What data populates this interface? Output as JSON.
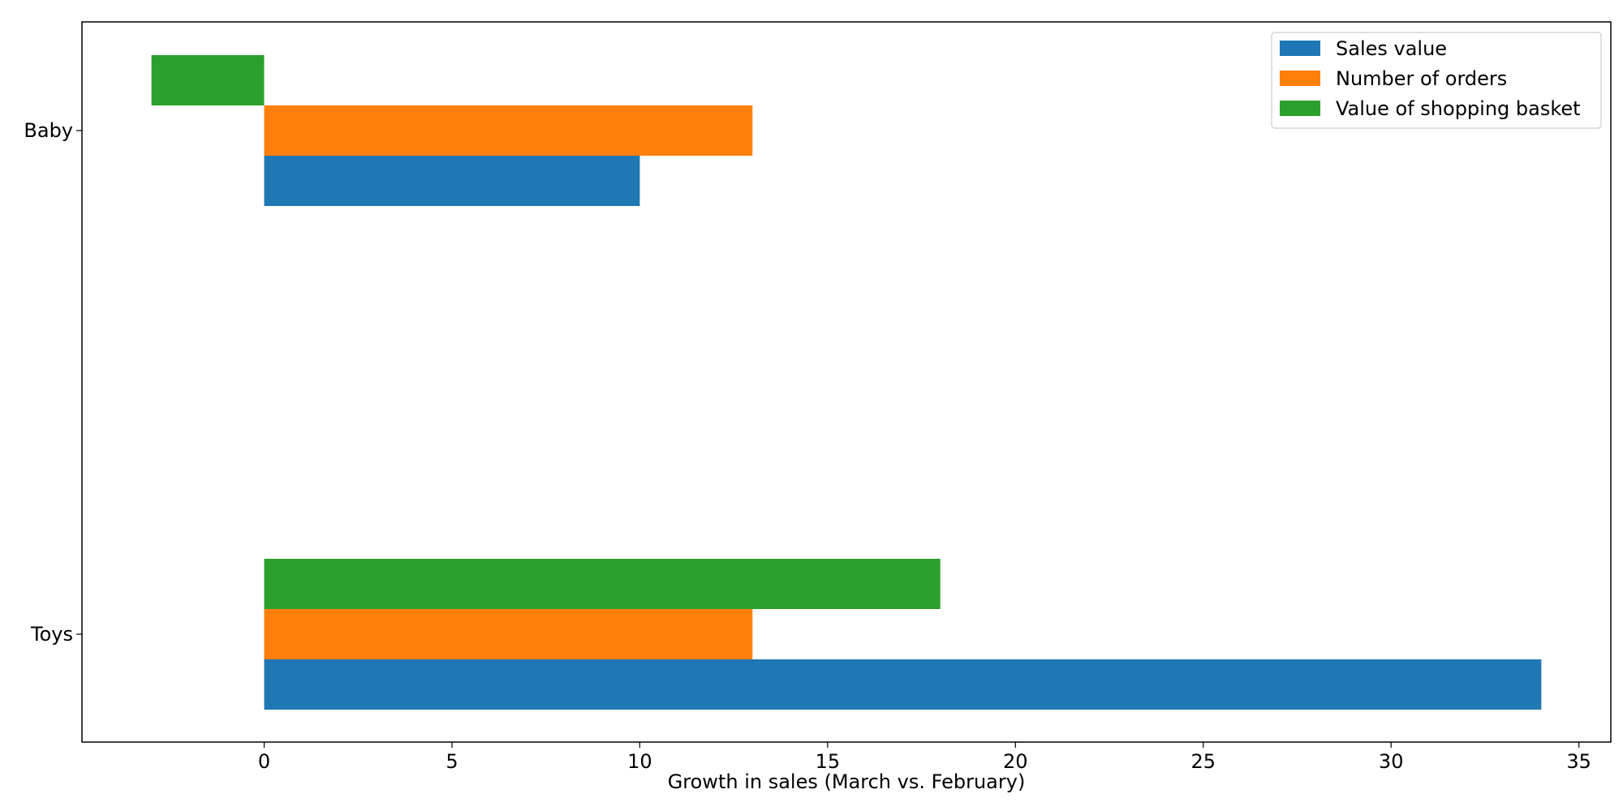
{
  "chart_data": {
    "type": "bar",
    "orientation": "horizontal",
    "title": "",
    "xlabel": "Growth in sales (March vs. February)",
    "ylabel": "",
    "categories": [
      "Baby",
      "Toys"
    ],
    "series": [
      {
        "name": "Sales value",
        "color": "#1f77b4",
        "values": [
          10,
          34
        ]
      },
      {
        "name": "Number of orders",
        "color": "#ff7f0e",
        "values": [
          13,
          13
        ]
      },
      {
        "name": "Value of shopping basket",
        "color": "#2ca02c",
        "values": [
          -3,
          18
        ]
      }
    ],
    "xticks": [
      "0",
      "5",
      "10",
      "15",
      "20",
      "25",
      "30",
      "35"
    ],
    "xlim": [
      -4.85,
      35.85
    ],
    "grid": false,
    "legend_position": "top-right"
  }
}
